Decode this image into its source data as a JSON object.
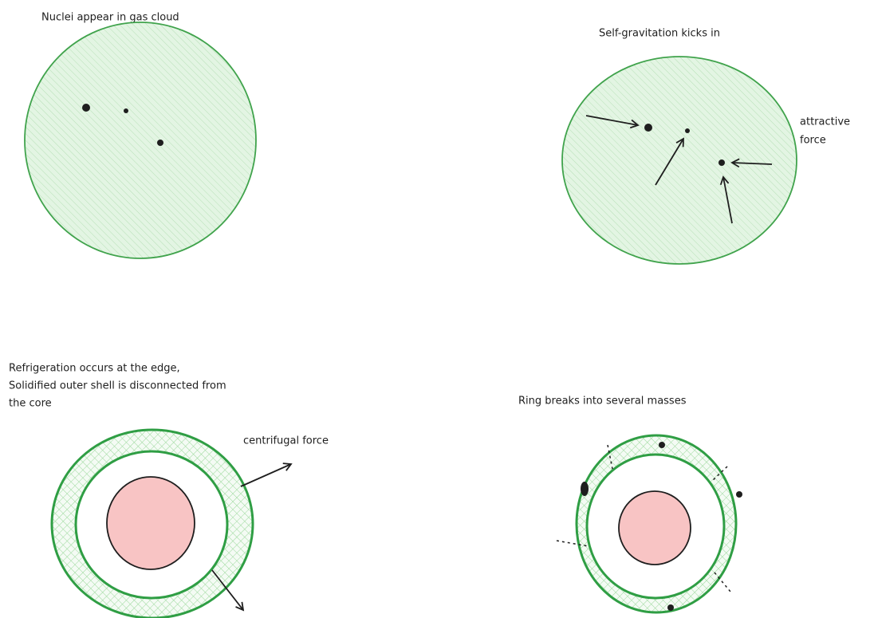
{
  "panels": [
    {
      "caption": [
        "Nuclei appear in gas cloud"
      ]
    },
    {
      "caption": [
        "Self-gravitation kicks in"
      ],
      "note": [
        "attractive",
        "force"
      ]
    },
    {
      "caption": [
        "Refrigeration occurs at the edge,",
        "Solidified outer shell is disconnected from",
        "the core"
      ],
      "note": [
        "centrifugal force"
      ]
    },
    {
      "caption": [
        "Ring breaks into several masses"
      ]
    }
  ]
}
